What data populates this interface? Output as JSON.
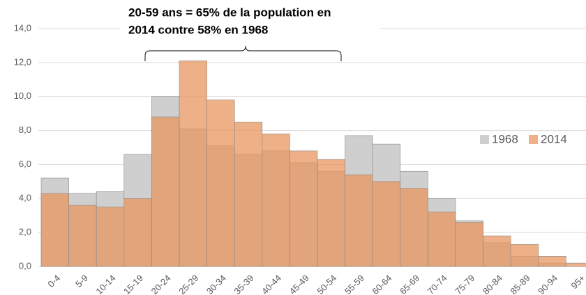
{
  "chart_data": {
    "type": "histogram",
    "annotation": [
      "20-59 ans = 65% de la population en",
      "2014 contre 58% en 1968"
    ],
    "categories": [
      "0-4",
      "5-9",
      "10-14",
      "15-19",
      "20-24",
      "25-29",
      "30-34",
      "35-39",
      "40-44",
      "45-49",
      "50-54",
      "55-59",
      "60-64",
      "65-69",
      "70-74",
      "75-79",
      "80-84",
      "85-89",
      "90-94",
      "95+"
    ],
    "series": [
      {
        "name": "1968",
        "color": "#cfcfcf",
        "values": [
          5.2,
          4.3,
          4.4,
          6.6,
          10.0,
          8.1,
          7.1,
          6.6,
          6.8,
          6.1,
          5.6,
          7.7,
          7.2,
          5.6,
          4.0,
          2.7,
          1.4,
          0.6,
          0.2,
          0.0
        ]
      },
      {
        "name": "2014",
        "color": "#e8955e",
        "values": [
          4.3,
          3.6,
          3.5,
          4.0,
          8.8,
          12.1,
          9.8,
          8.5,
          7.8,
          6.8,
          6.3,
          5.4,
          5.0,
          4.6,
          3.2,
          2.6,
          1.8,
          1.3,
          0.6,
          0.2
        ]
      }
    ],
    "ylim": [
      0,
      14
    ],
    "yticks": [
      {
        "value": 0,
        "label": "0,0"
      },
      {
        "value": 2,
        "label": "2,0"
      },
      {
        "value": 4,
        "label": "4,0"
      },
      {
        "value": 6,
        "label": "6,0"
      },
      {
        "value": 8,
        "label": "8,0"
      },
      {
        "value": 10,
        "label": "10,0"
      },
      {
        "value": 12,
        "label": "12,0"
      },
      {
        "value": 14,
        "label": "14,0"
      }
    ],
    "grid": true,
    "legend": "right"
  }
}
